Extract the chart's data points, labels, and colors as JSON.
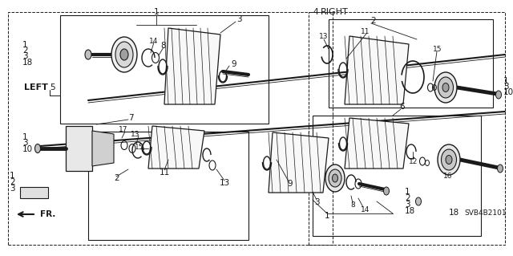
{
  "figsize": [
    6.4,
    3.19
  ],
  "dpi": 100,
  "bg_color": "#ffffff",
  "line_color": "#1a1a1a",
  "text_color": "#1a1a1a",
  "gray": "#888888",
  "labels": {
    "LEFT": "LEFT",
    "RIGHT": "RIGHT",
    "fr": "FR.",
    "svb": "SVB4B2101",
    "num4": "4",
    "num5": "5"
  }
}
